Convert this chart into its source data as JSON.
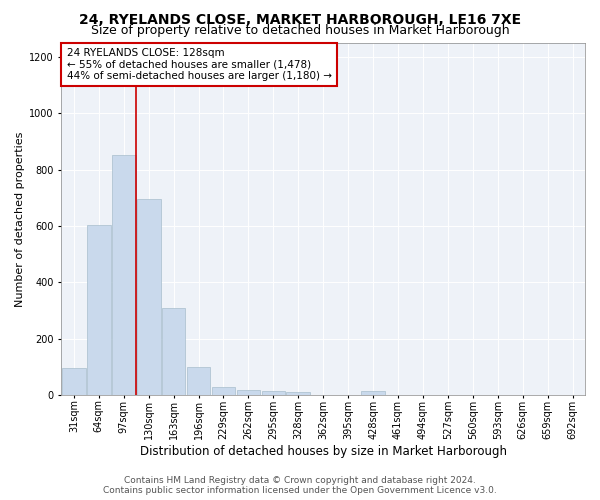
{
  "title": "24, RYELANDS CLOSE, MARKET HARBOROUGH, LE16 7XE",
  "subtitle": "Size of property relative to detached houses in Market Harborough",
  "xlabel": "Distribution of detached houses by size in Market Harborough",
  "ylabel": "Number of detached properties",
  "bar_color": "#c9d9ec",
  "bar_edge_color": "#a8becc",
  "categories": [
    "31sqm",
    "64sqm",
    "97sqm",
    "130sqm",
    "163sqm",
    "196sqm",
    "229sqm",
    "262sqm",
    "295sqm",
    "328sqm",
    "362sqm",
    "395sqm",
    "428sqm",
    "461sqm",
    "494sqm",
    "527sqm",
    "560sqm",
    "593sqm",
    "626sqm",
    "659sqm",
    "692sqm"
  ],
  "values": [
    95,
    605,
    850,
    695,
    310,
    100,
    30,
    20,
    15,
    10,
    0,
    0,
    15,
    0,
    0,
    0,
    0,
    0,
    0,
    0,
    0
  ],
  "vline_position": 2.5,
  "vline_color": "#cc0000",
  "ylim": [
    0,
    1250
  ],
  "yticks": [
    0,
    200,
    400,
    600,
    800,
    1000,
    1200
  ],
  "annotation_text": "24 RYELANDS CLOSE: 128sqm\n← 55% of detached houses are smaller (1,478)\n44% of semi-detached houses are larger (1,180) →",
  "annotation_bbox_facecolor": "#ffffff",
  "annotation_bbox_edgecolor": "#cc0000",
  "footer_line1": "Contains HM Land Registry data © Crown copyright and database right 2024.",
  "footer_line2": "Contains public sector information licensed under the Open Government Licence v3.0.",
  "fig_facecolor": "#ffffff",
  "plot_facecolor": "#eef2f8",
  "title_fontsize": 10,
  "subtitle_fontsize": 9,
  "ylabel_fontsize": 8,
  "xlabel_fontsize": 8.5,
  "tick_fontsize": 7,
  "annotation_fontsize": 7.5,
  "footer_fontsize": 6.5
}
